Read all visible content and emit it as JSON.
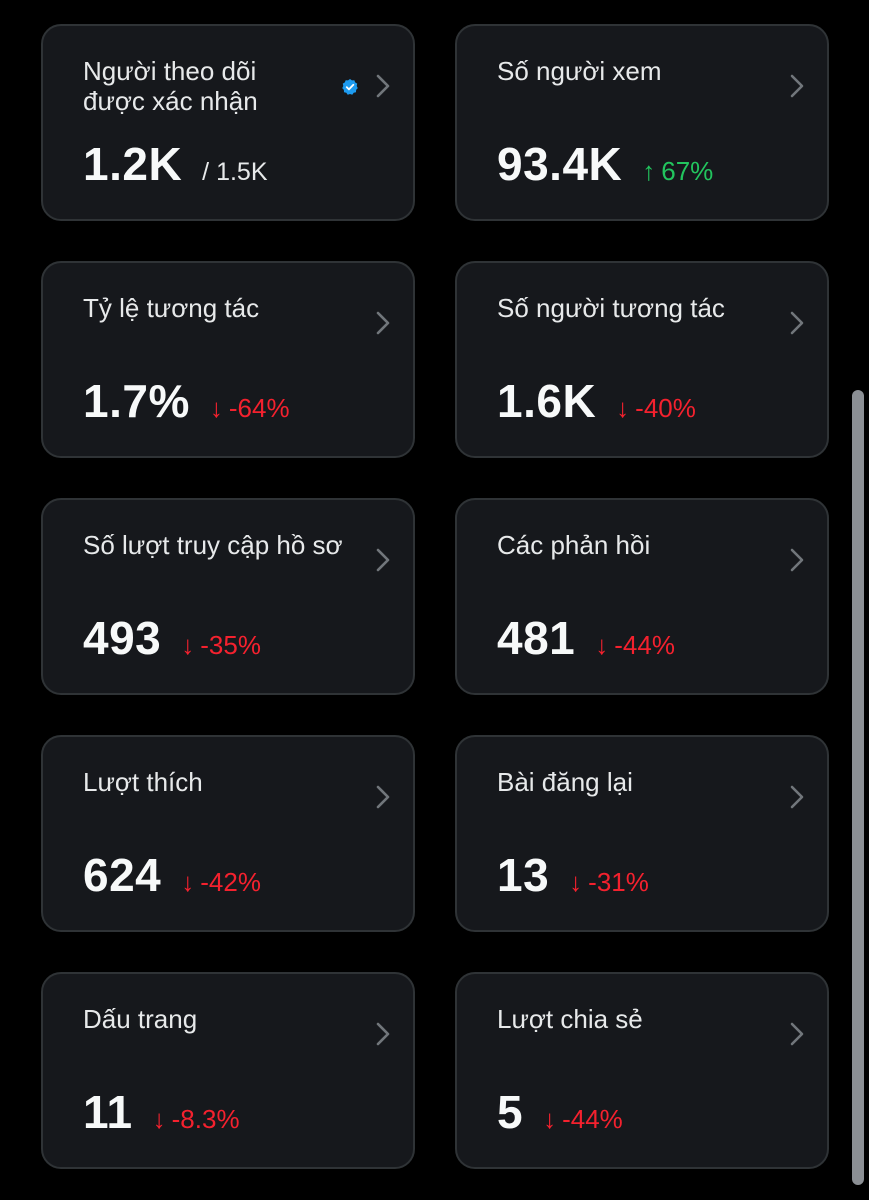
{
  "colors": {
    "positive": "#22c55e",
    "negative": "#f4212e",
    "verified": "#1d9bf0"
  },
  "cards": [
    {
      "title": "Người theo dõi được xác nhận",
      "value": "1.2K",
      "total": "/ 1.5K",
      "verified": true
    },
    {
      "title": "Số người xem",
      "value": "93.4K",
      "delta_arrow": "↑",
      "delta": "67%",
      "trend": "up"
    },
    {
      "title": "Tỷ lệ tương tác",
      "value": "1.7%",
      "delta_arrow": "↓",
      "delta": "-64%",
      "trend": "down"
    },
    {
      "title": "Số người tương tác",
      "value": "1.6K",
      "delta_arrow": "↓",
      "delta": "-40%",
      "trend": "down"
    },
    {
      "title": "Số lượt truy cập hồ sơ",
      "value": "493",
      "delta_arrow": "↓",
      "delta": "-35%",
      "trend": "down"
    },
    {
      "title": "Các phản hồi",
      "value": "481",
      "delta_arrow": "↓",
      "delta": "-44%",
      "trend": "down"
    },
    {
      "title": "Lượt thích",
      "value": "624",
      "delta_arrow": "↓",
      "delta": "-42%",
      "trend": "down"
    },
    {
      "title": "Bài đăng lại",
      "value": "13",
      "delta_arrow": "↓",
      "delta": "-31%",
      "trend": "down"
    },
    {
      "title": "Dấu trang",
      "value": "11",
      "delta_arrow": "↓",
      "delta": "-8.3%",
      "trend": "down"
    },
    {
      "title": "Lượt chia sẻ",
      "value": "5",
      "delta_arrow": "↓",
      "delta": "-44%",
      "trend": "down"
    }
  ]
}
